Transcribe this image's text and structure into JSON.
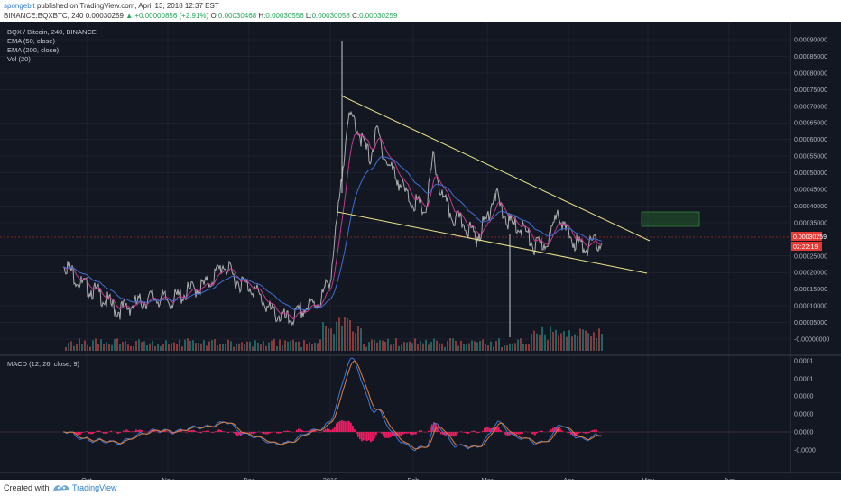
{
  "header": {
    "author": "spongebit",
    "published_text": "published on TradingView.com, April 13, 2018 12:37 EST",
    "symbol": "BINANCE:BQXBTC, 240",
    "last": "0.00030259",
    "change": "▲ +0.00000856 (+2.91%)",
    "o_label": "O:",
    "o_value": "0.00030468",
    "h_label": "H:",
    "h_value": "0.00030556",
    "l_label": "L:",
    "l_value": "0.00030058",
    "c_label": "C:",
    "c_value": "0.00030259"
  },
  "legend": {
    "title": "BQX / Bitcoin, 240, BINANCE",
    "ema50": "EMA (50, close)",
    "ema200": "EMA (200, close)",
    "vol": "Vol (20)"
  },
  "macd": {
    "label": "MACD (12, 26, close, 9)"
  },
  "price_axis": {
    "labels": [
      "0.00090000",
      "0.00085000",
      "0.00080000",
      "0.00075000",
      "0.00070000",
      "0.00065000",
      "0.00060000",
      "0.00055000",
      "0.00050000",
      "0.00045000",
      "0.00040000",
      "0.00035000",
      "0.00025000",
      "0.00020000",
      "0.00015000",
      "0.00010000",
      "0.00005000",
      "-0.00000000"
    ],
    "values": [
      0.0009,
      0.00085,
      0.0008,
      0.00075,
      0.0007,
      0.00065,
      0.0006,
      0.00055,
      0.0005,
      0.00045,
      0.0004,
      0.00035,
      0.00025,
      0.0002,
      0.00015,
      0.0001,
      5e-05,
      0
    ],
    "last_price_tag": "0.00030259",
    "countdown_tag": "02:22:19"
  },
  "macd_axis": {
    "labels": [
      "0.0001",
      "0.0001",
      "0.0000",
      "0.0000",
      "0.0000",
      "-0.0000"
    ]
  },
  "time_axis": {
    "labels": [
      "Oct",
      "Nov",
      "Dec",
      "2018",
      "Feb",
      "Mar",
      "Apr",
      "May",
      "Jun"
    ]
  },
  "colors": {
    "background": "#131722",
    "grid": "#232836",
    "price_line": "#c8c8c8",
    "ema50": "#c23b8e",
    "ema200": "#3f6fd4",
    "trendline": "#e8e38a",
    "target_box": "#2e7d32",
    "macd_line": "#3e79d8",
    "signal_line": "#e0803a",
    "hist": "#e91e63",
    "last_price_tag": "#e53935",
    "vol_up": "#26a69a",
    "vol_down": "#ef5350"
  },
  "footer": {
    "created_with": "Created with",
    "brand": "TradingView"
  }
}
